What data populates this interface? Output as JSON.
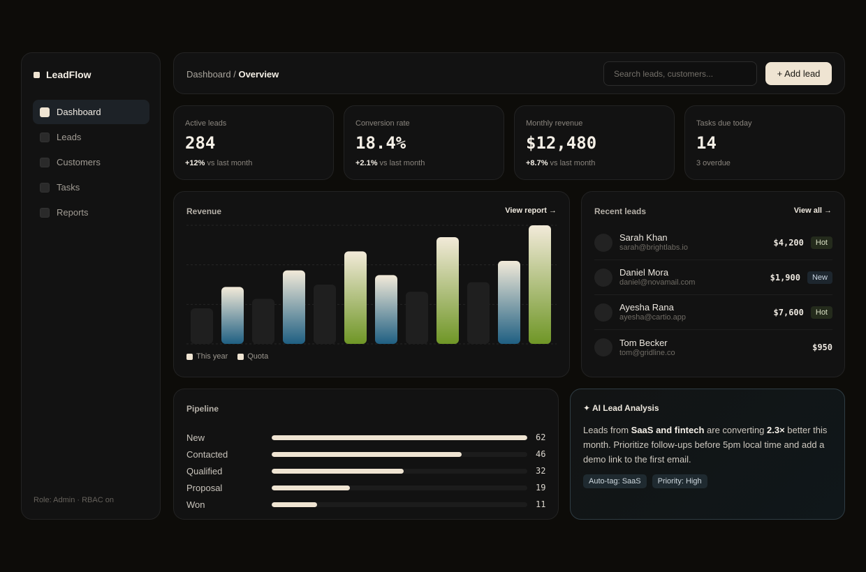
{
  "sidebar": {
    "brand": "LeadFlow",
    "items": [
      {
        "label": "Dashboard",
        "active": true
      },
      {
        "label": "Leads",
        "active": false
      },
      {
        "label": "Customers",
        "active": false
      },
      {
        "label": "Tasks",
        "active": false
      },
      {
        "label": "Reports",
        "active": false
      }
    ],
    "role_text": "Role: Admin · RBAC on"
  },
  "header": {
    "breadcrumb_parent": "Dashboard",
    "breadcrumb_sep": " / ",
    "breadcrumb_current": "Overview",
    "search_placeholder": "Search leads, customers...",
    "add_button": "+ Add lead"
  },
  "stats": [
    {
      "label": "Active leads",
      "value": "284",
      "change": "+12%",
      "change_suffix": " vs last month"
    },
    {
      "label": "Conversion rate",
      "value": "18.4%",
      "change": "+2.1%",
      "change_suffix": " vs last month"
    },
    {
      "label": "Monthly revenue",
      "value": "$12,480",
      "change": "+8.7%",
      "change_suffix": " vs last month"
    },
    {
      "label": "Tasks due today",
      "value": "14",
      "change": "",
      "change_suffix": "3 overdue"
    }
  ],
  "revenue": {
    "title": "Revenue",
    "link": "View report →",
    "legend": [
      "This year",
      "Quota"
    ]
  },
  "chart_data": {
    "type": "bar",
    "ylim": [
      0,
      100
    ],
    "grid": true,
    "legend_placement": "bottom-left",
    "values": [
      30,
      48,
      38,
      62,
      50,
      78,
      58,
      44,
      90,
      52,
      70,
      100
    ],
    "colors": [
      "dark",
      "blue",
      "dark",
      "blue",
      "dark",
      "green",
      "blue",
      "dark",
      "green",
      "dark",
      "blue",
      "green"
    ],
    "palette": {
      "dark": "#1f1f1f",
      "blue": "#1f5f82",
      "green": "#6f9626",
      "top": "#f2ead9"
    }
  },
  "recent_leads": {
    "title": "Recent leads",
    "link": "View all →",
    "items": [
      {
        "name": "Sarah Khan",
        "email": "sarah@brightlabs.io",
        "amount": "$4,200",
        "badge": "Hot",
        "badge_type": "hot"
      },
      {
        "name": "Daniel Mora",
        "email": "daniel@novamail.com",
        "amount": "$1,900",
        "badge": "New",
        "badge_type": "new"
      },
      {
        "name": "Ayesha Rana",
        "email": "ayesha@cartio.app",
        "amount": "$7,600",
        "badge": "Hot",
        "badge_type": "hot"
      },
      {
        "name": "Tom Becker",
        "email": "tom@gridline.co",
        "amount": "$950",
        "badge": "",
        "badge_type": ""
      }
    ]
  },
  "pipeline": {
    "title": "Pipeline",
    "max": 62,
    "stages": [
      {
        "label": "New",
        "value": 62
      },
      {
        "label": "Contacted",
        "value": 46
      },
      {
        "label": "Qualified",
        "value": 32
      },
      {
        "label": "Proposal",
        "value": 19
      },
      {
        "label": "Won",
        "value": 11
      }
    ]
  },
  "ai": {
    "title": "✦ AI Lead Analysis",
    "text_1": "Leads from ",
    "text_bold_1": "SaaS and fintech",
    "text_2": " are converting ",
    "text_bold_2": "2.3×",
    "text_3": " better this month. Prioritize follow-ups before 5pm local time and add a demo link to the first email.",
    "tags": [
      "Auto-tag: SaaS",
      "Priority: High"
    ]
  }
}
